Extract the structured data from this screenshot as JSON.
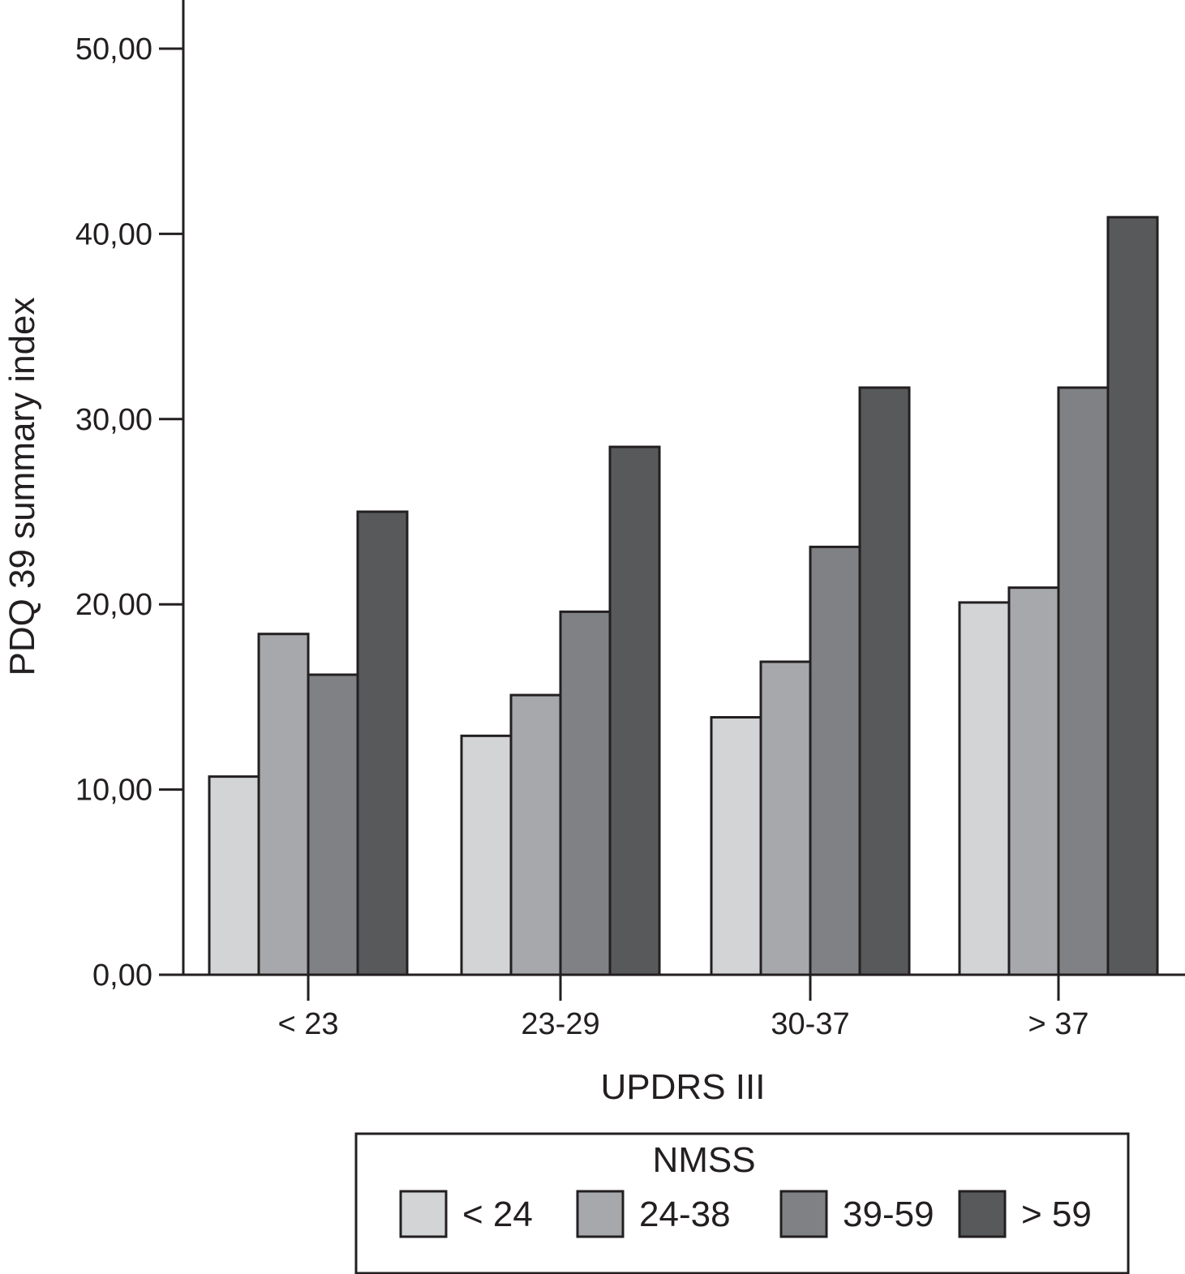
{
  "chart_data": {
    "type": "bar",
    "xlabel": "UPDRS III",
    "ylabel": "PDQ 39 summary index",
    "ylim": [
      0,
      50
    ],
    "yticks": [
      "0,00",
      "10,00",
      "20,00",
      "30,00",
      "40,00",
      "50,00"
    ],
    "ytick_values": [
      0,
      10,
      20,
      30,
      40,
      50
    ],
    "categories": [
      "< 23",
      "23-29",
      "30-37",
      "> 37"
    ],
    "series": [
      {
        "name": "< 24",
        "color": "#d3d4d6",
        "values": [
          10.7,
          12.9,
          13.9,
          20.1
        ]
      },
      {
        "name": "24-38",
        "color": "#a7a8ab",
        "values": [
          18.4,
          15.1,
          16.9,
          20.9
        ]
      },
      {
        "name": "39-59",
        "color": "#808184",
        "values": [
          16.2,
          19.6,
          23.1,
          31.7
        ]
      },
      {
        "name": "> 59",
        "color": "#58595b",
        "values": [
          25.0,
          28.5,
          31.7,
          40.9
        ]
      }
    ],
    "legend": {
      "title": "NMSS",
      "position": "bottom-right"
    },
    "grid": false
  }
}
